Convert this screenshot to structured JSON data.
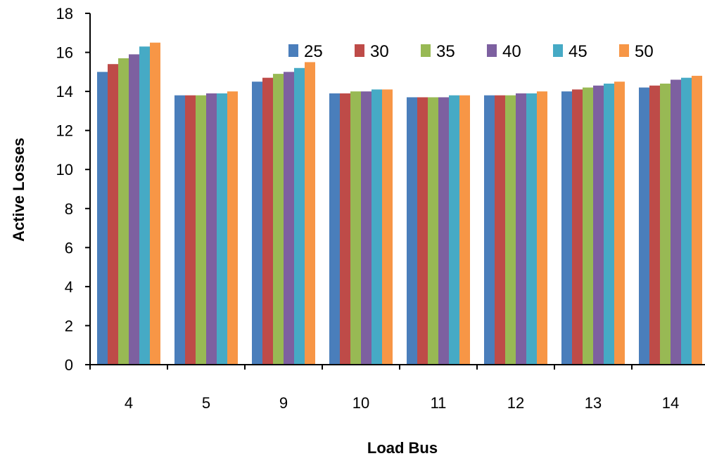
{
  "chart_data": {
    "type": "bar",
    "title": "",
    "xlabel": "Load Bus",
    "ylabel": "Active Losses",
    "categories": [
      "4",
      "5",
      "9",
      "10",
      "11",
      "12",
      "13",
      "14"
    ],
    "ylim": [
      0,
      18
    ],
    "yticks": [
      0,
      2,
      4,
      6,
      8,
      10,
      12,
      14,
      16,
      18
    ],
    "grid": false,
    "legend_position": "top-right",
    "series": [
      {
        "name": "25",
        "color": "#4A7EBB",
        "values": [
          15.0,
          13.8,
          14.5,
          13.9,
          13.7,
          13.8,
          14.0,
          14.2
        ]
      },
      {
        "name": "30",
        "color": "#BE4B48",
        "values": [
          15.4,
          13.8,
          14.7,
          13.9,
          13.7,
          13.8,
          14.1,
          14.3
        ]
      },
      {
        "name": "35",
        "color": "#98B954",
        "values": [
          15.7,
          13.8,
          14.9,
          14.0,
          13.7,
          13.8,
          14.2,
          14.4
        ]
      },
      {
        "name": "40",
        "color": "#7D60A0",
        "values": [
          15.9,
          13.9,
          15.0,
          14.0,
          13.7,
          13.9,
          14.3,
          14.6
        ]
      },
      {
        "name": "45",
        "color": "#46AAC5",
        "values": [
          16.3,
          13.9,
          15.2,
          14.1,
          13.8,
          13.9,
          14.4,
          14.7
        ]
      },
      {
        "name": "50",
        "color": "#F79646",
        "values": [
          16.5,
          14.0,
          15.5,
          14.1,
          13.8,
          14.0,
          14.5,
          14.8
        ]
      }
    ]
  }
}
